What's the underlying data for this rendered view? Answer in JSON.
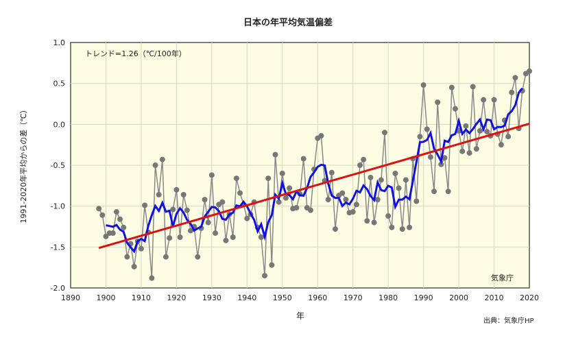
{
  "chart_data": {
    "type": "line",
    "title": "日本の年平均気温偏差",
    "xlabel": "年",
    "ylabel": "1991-2020年平均からの差（℃）",
    "xlim": [
      1890,
      2020
    ],
    "ylim": [
      -2.0,
      1.0
    ],
    "xticks": [
      1890,
      1900,
      1910,
      1920,
      1930,
      1940,
      1950,
      1960,
      1970,
      1980,
      1990,
      2000,
      2010,
      2020
    ],
    "yticks": [
      1.0,
      0.5,
      0.0,
      -0.5,
      -1.0,
      -1.5,
      -2.0
    ],
    "ytick_labels": [
      "1.0",
      "0.5",
      "0.0",
      "-0.5",
      "-1.0",
      "-1.5",
      "-2.0"
    ],
    "grid": true,
    "trend_label": "トレンド=1.26（℃/100年）",
    "trend_per_100yr": 1.26,
    "agency_label": "気象庁",
    "source": "出典：気象庁HP",
    "start_year": 1898,
    "series": [
      {
        "name": "annual anomaly",
        "color": "#808080",
        "values": [
          -1.03,
          -1.11,
          -1.37,
          -1.33,
          -1.33,
          -1.07,
          -1.16,
          -1.26,
          -1.62,
          -1.46,
          -1.74,
          -1.43,
          -1.52,
          -0.99,
          -1.32,
          -1.88,
          -0.5,
          -0.86,
          -0.43,
          -1.62,
          -1.39,
          -1.04,
          -0.8,
          -1.38,
          -0.86,
          -1.05,
          -1.3,
          -1.25,
          -1.62,
          -1.27,
          -0.92,
          -1.2,
          -0.62,
          -1.33,
          -0.98,
          -0.95,
          -1.42,
          -1.1,
          -1.38,
          -0.66,
          -0.84,
          -0.98,
          -1.15,
          -1.1,
          -0.95,
          -1.26,
          -1.38,
          -1.85,
          -0.66,
          -1.72,
          -0.37,
          -0.95,
          -0.6,
          -0.9,
          -0.78,
          -1.03,
          -1.02,
          -0.85,
          -0.42,
          -1.02,
          -1.05,
          -0.55,
          -0.17,
          -0.14,
          -0.69,
          -0.92,
          -0.59,
          -1.28,
          -0.87,
          -0.84,
          -0.92,
          -1.08,
          -1.07,
          -0.98,
          -0.5,
          -0.43,
          -1.18,
          -0.65,
          -1.2,
          -0.92,
          -0.68,
          -0.1,
          -1.12,
          -1.26,
          -0.6,
          -0.78,
          -1.28,
          -0.68,
          -1.26,
          -0.42,
          -0.94,
          -0.15,
          0.48,
          -0.06,
          -0.4,
          -0.82,
          0.27,
          -0.49,
          -0.41,
          -0.82,
          0.45,
          0.19,
          -0.08,
          -0.33,
          -0.02,
          -0.35,
          0.46,
          -0.3,
          -0.08,
          0.3,
          -0.09,
          -0.14,
          0.3,
          -0.12,
          -0.25,
          0.05,
          -0.15,
          0.39,
          0.57,
          -0.05,
          0.41,
          0.62,
          0.65
        ]
      },
      {
        "name": "5-year running mean",
        "color": "#1010e0"
      },
      {
        "name": "long-term trend",
        "color": "#e01010"
      }
    ]
  }
}
